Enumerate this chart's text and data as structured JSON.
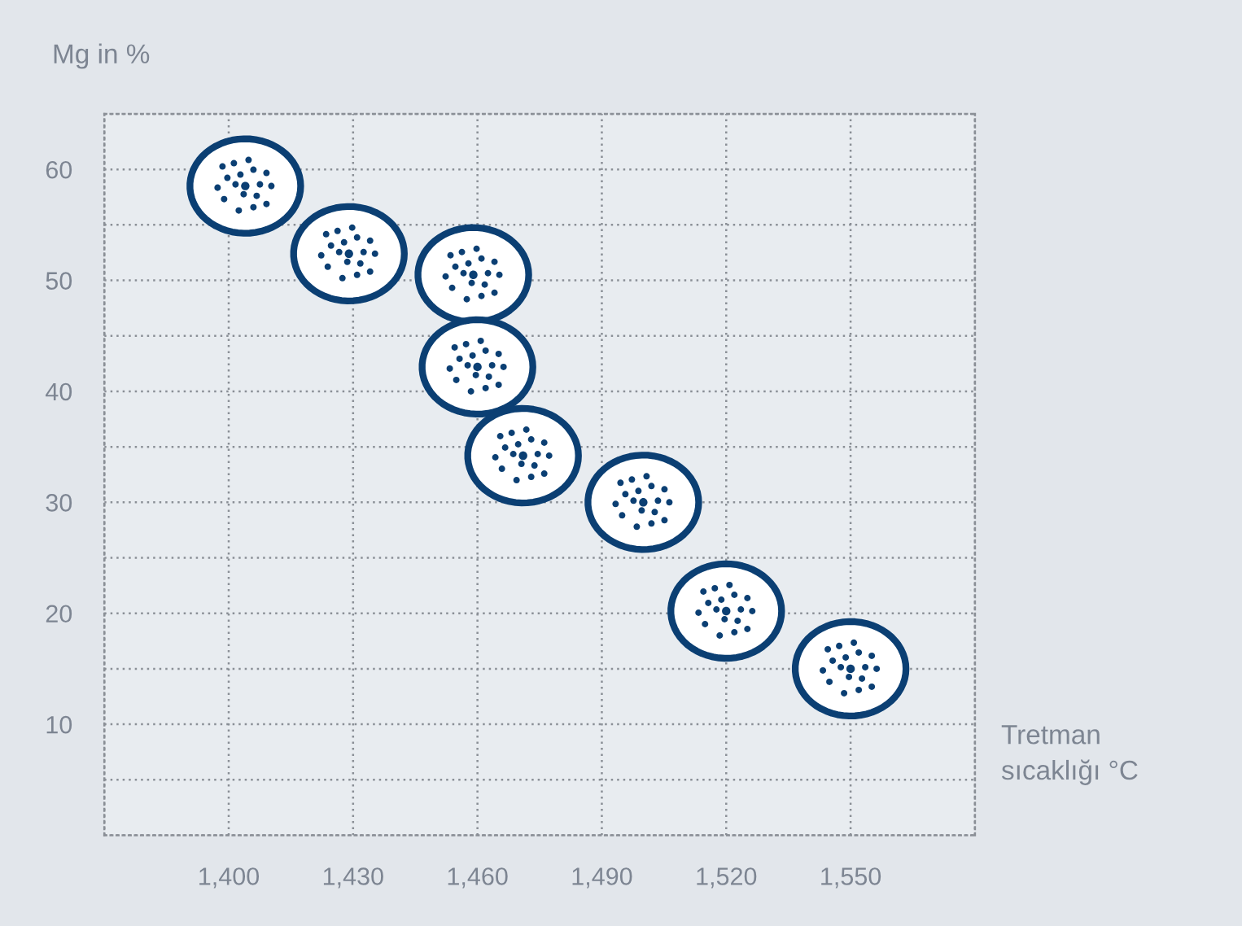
{
  "chart_data": {
    "type": "scatter",
    "ylabel": "Mg in %",
    "xlabel": "Tretman\nsıcaklığı °C",
    "x": [
      1404,
      1429,
      1459,
      1460,
      1471,
      1500,
      1520,
      1550
    ],
    "values": [
      58.5,
      52.4,
      50.5,
      42.2,
      34.2,
      30.0,
      20.2,
      15.0
    ],
    "color": "#0b3f73",
    "marker": "circle",
    "grid": true,
    "xlim": [
      1370,
      1580
    ],
    "xticks": [
      {
        "value": 1370,
        "label": null
      },
      {
        "value": 1400,
        "label": "1,400"
      },
      {
        "value": 1430,
        "label": "1,430"
      },
      {
        "value": 1460,
        "label": "1,460"
      },
      {
        "value": 1490,
        "label": "1,490"
      },
      {
        "value": 1520,
        "label": "1,520"
      },
      {
        "value": 1550,
        "label": "1,550"
      },
      {
        "value": 1580,
        "label": null
      }
    ],
    "ylim": [
      0,
      65
    ],
    "yticks": [
      {
        "value": 0,
        "label": null
      },
      {
        "value": 5,
        "label": null
      },
      10,
      {
        "value": 15,
        "label": null
      },
      20,
      {
        "value": 25,
        "label": null
      },
      30,
      {
        "value": 35,
        "label": null
      },
      40,
      {
        "value": 45,
        "label": null
      },
      50,
      {
        "value": 55,
        "label": null
      },
      60,
      {
        "value": 65,
        "label": null
      }
    ]
  }
}
